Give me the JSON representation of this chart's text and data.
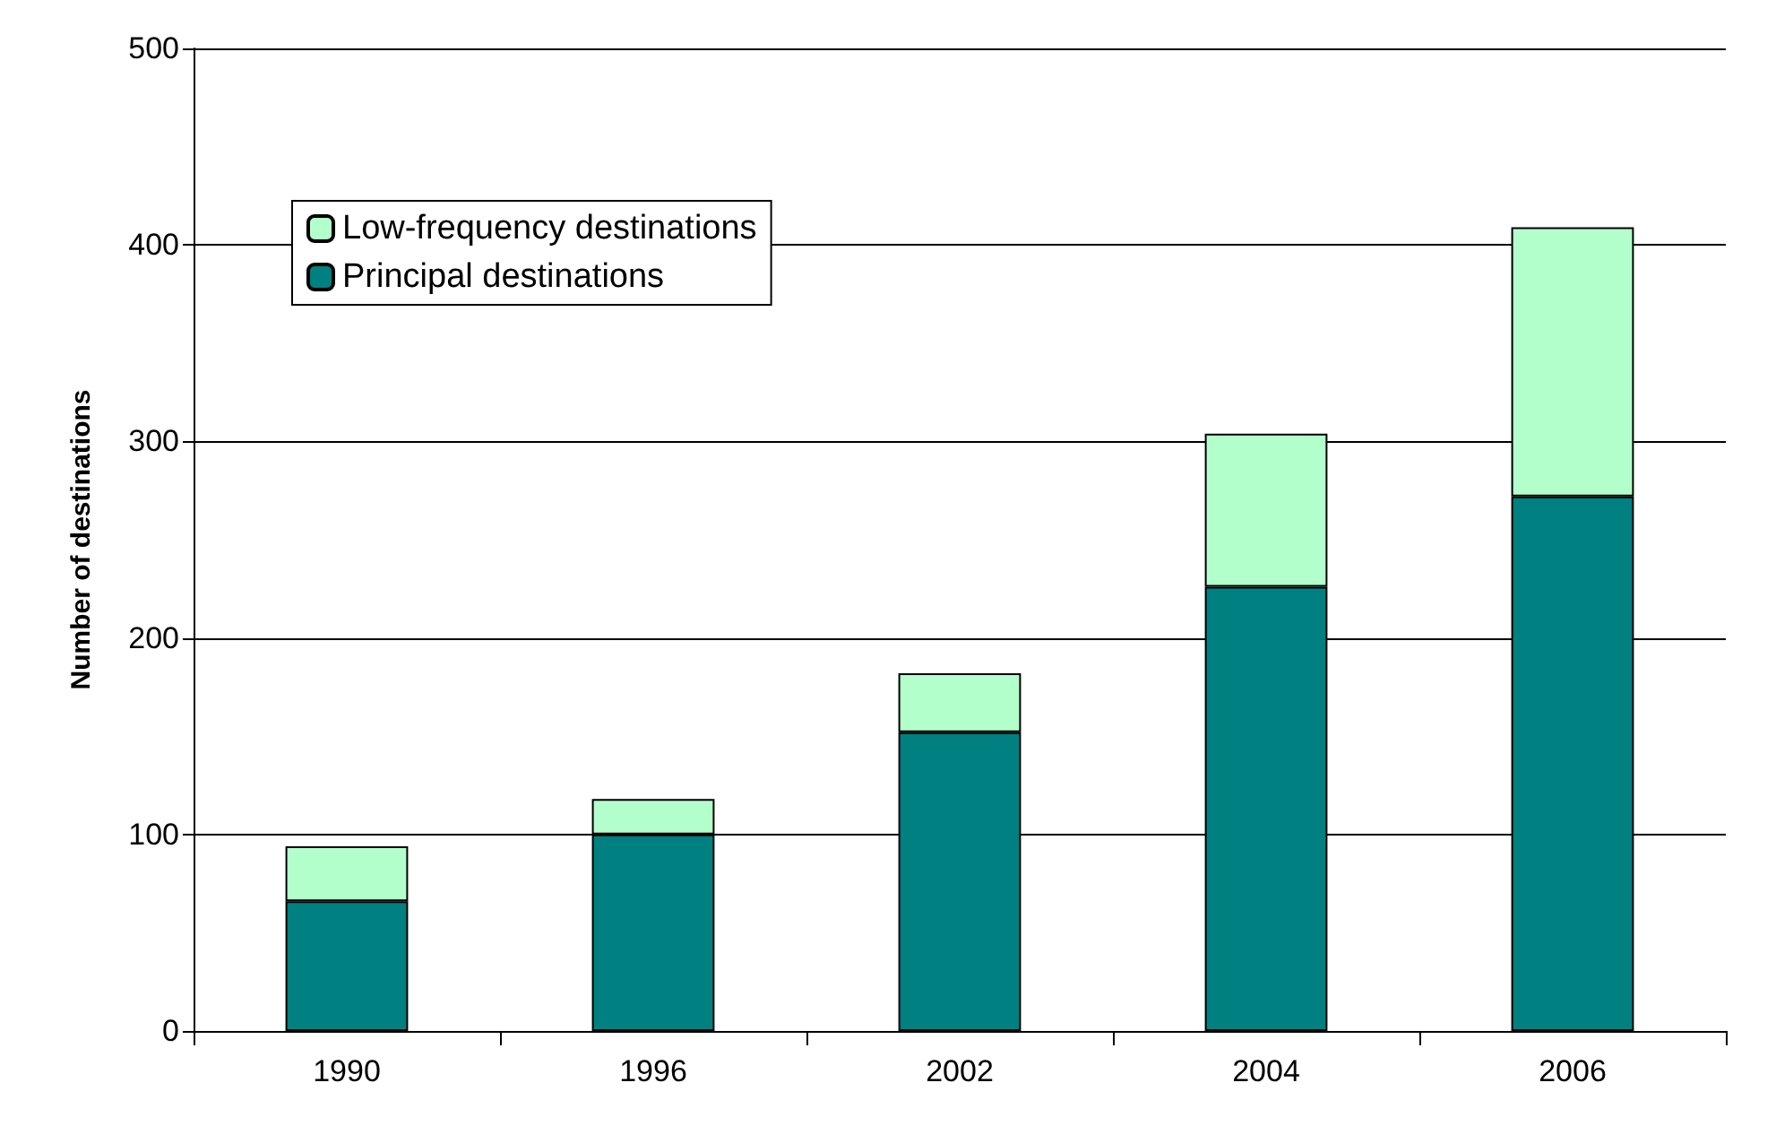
{
  "chart_data": {
    "type": "bar",
    "ylabel": "Number of destinations",
    "categories": [
      "1990",
      "1996",
      "2002",
      "2004",
      "2006"
    ],
    "stacked": true,
    "series": [
      {
        "name": "Principal destinations",
        "color": "#008080",
        "values": [
          66,
          100,
          152,
          226,
          272
        ]
      },
      {
        "name": "Low-frequency destinations",
        "color": "#b3ffcc",
        "values": [
          28,
          18,
          30,
          78,
          137
        ]
      }
    ],
    "ylim": [
      0,
      500
    ],
    "yticks": [
      0,
      100,
      200,
      300,
      400,
      500
    ],
    "grid": "y",
    "legend": "top left"
  }
}
